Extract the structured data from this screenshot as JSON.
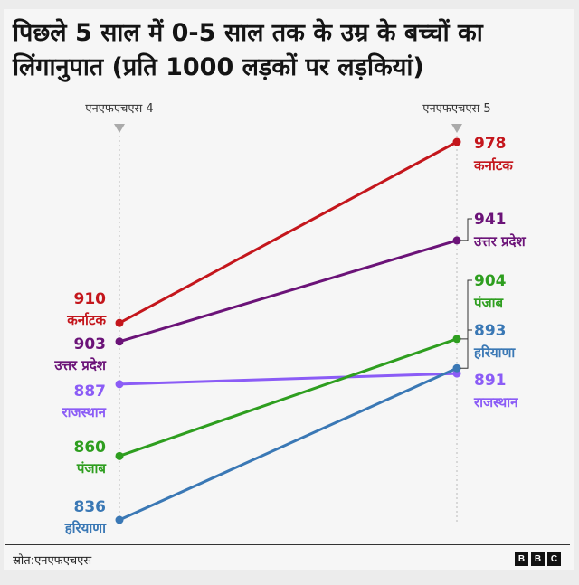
{
  "chart_data": {
    "type": "slope",
    "title": "पिछले 5 साल में 0-5 साल तक के उम्र के बच्चों का लिंगानुपात (प्रति 1000 लड़कों पर लड़कियां)",
    "categories": [
      "एनएफएचएस 4",
      "एनएफएचएस 5"
    ],
    "series": [
      {
        "name": "कर्नाटक",
        "values": [
          910,
          978
        ],
        "color": "#c4161c"
      },
      {
        "name": "उत्तर प्रदेश",
        "values": [
          903,
          941
        ],
        "color": "#6b1378"
      },
      {
        "name": "राजस्थान",
        "values": [
          887,
          891
        ],
        "color": "#8b5cf6"
      },
      {
        "name": "पंजाब",
        "values": [
          860,
          904
        ],
        "color": "#2e9e1f"
      },
      {
        "name": "हरियाणा",
        "values": [
          836,
          893
        ],
        "color": "#3a78b5"
      }
    ],
    "source": "स्रोत:एनएफएचएस"
  },
  "brand": [
    "B",
    "B",
    "C"
  ]
}
